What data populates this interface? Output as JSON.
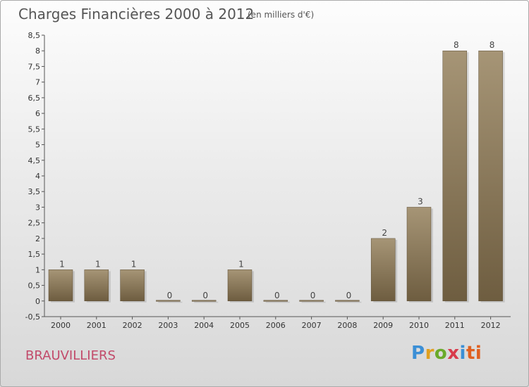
{
  "header": {
    "title": "Charges Financières 2000 à 2012",
    "unit": "(en milliers d'€)"
  },
  "footer": {
    "city": "BRAUVILLIERS",
    "logo": "Proxiti"
  },
  "colors": {
    "bar_dark": "#6e5d40",
    "bar_light": "#a69576",
    "city": "#c24a6a"
  },
  "chart_data": {
    "type": "bar",
    "title": "Charges Financières 2000 à 2012",
    "subtitle": "(en milliers d'€)",
    "categories": [
      "2000",
      "2001",
      "2002",
      "2003",
      "2004",
      "2005",
      "2006",
      "2007",
      "2008",
      "2009",
      "2010",
      "2011",
      "2012"
    ],
    "values": [
      1,
      1,
      1,
      0,
      0,
      1,
      0,
      0,
      0,
      2,
      3,
      8,
      8
    ],
    "ylim": [
      -0.5,
      8.5
    ],
    "yticks": [
      "-0,5",
      "0",
      "0,5",
      "1",
      "1,5",
      "2",
      "2,5",
      "3",
      "3,5",
      "4",
      "4,5",
      "5",
      "5,5",
      "6",
      "6,5",
      "7",
      "7,5",
      "8",
      "8,5"
    ],
    "grid": false
  }
}
